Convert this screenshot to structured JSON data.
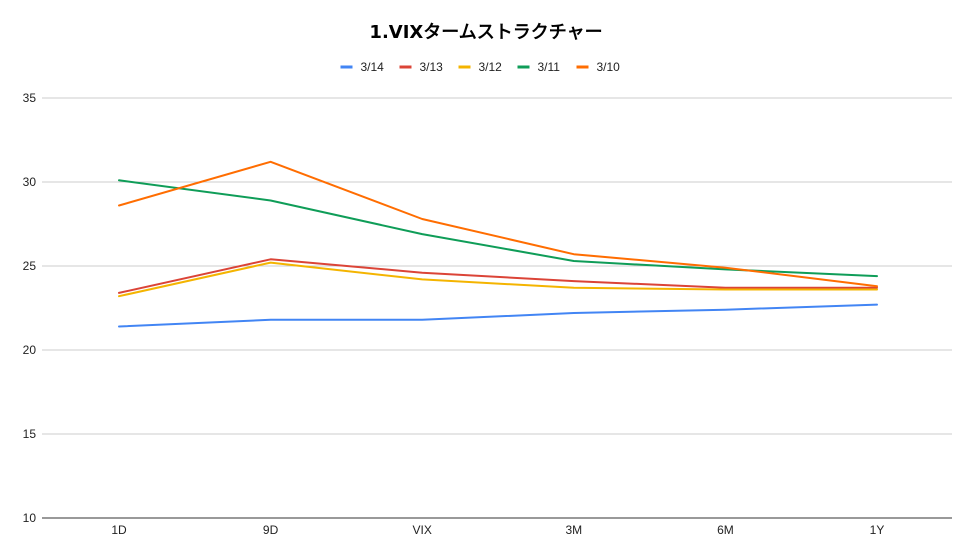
{
  "chart_data": {
    "type": "line",
    "title": "1.VIXタームストラクチャー",
    "xlabel": "",
    "ylabel": "",
    "categories": [
      "1D",
      "9D",
      "VIX",
      "3M",
      "6M",
      "1Y"
    ],
    "ylim": [
      10,
      35
    ],
    "yticks": [
      10,
      15,
      20,
      25,
      30,
      35
    ],
    "grid": true,
    "legend_position": "top",
    "series": [
      {
        "name": "3/14",
        "color": "#4285f4",
        "values": [
          21.4,
          21.8,
          21.8,
          22.2,
          22.4,
          22.7
        ]
      },
      {
        "name": "3/13",
        "color": "#db4437",
        "values": [
          23.4,
          25.4,
          24.6,
          24.1,
          23.7,
          23.7
        ]
      },
      {
        "name": "3/12",
        "color": "#f4b400",
        "values": [
          23.2,
          25.2,
          24.2,
          23.7,
          23.6,
          23.6
        ]
      },
      {
        "name": "3/11",
        "color": "#0f9d58",
        "values": [
          30.1,
          28.9,
          26.9,
          25.3,
          24.8,
          24.4
        ]
      },
      {
        "name": "3/10",
        "color": "#ff6d01",
        "values": [
          28.6,
          31.2,
          27.8,
          25.7,
          24.9,
          23.8
        ]
      }
    ]
  }
}
